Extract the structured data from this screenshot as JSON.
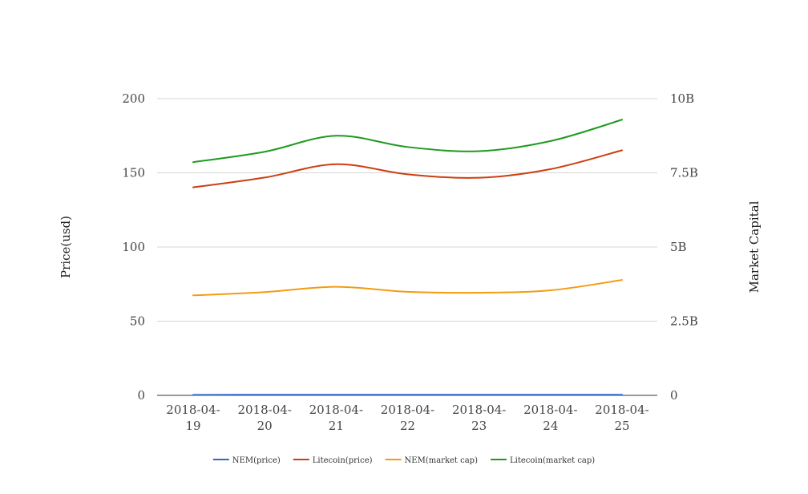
{
  "chart_data": {
    "type": "line",
    "title": "",
    "x": [
      "2018-04-19",
      "2018-04-20",
      "2018-04-21",
      "2018-04-22",
      "2018-04-23",
      "2018-04-24",
      "2018-04-25"
    ],
    "x_tick_labels": [
      [
        "2018-04-",
        "19"
      ],
      [
        "2018-04-",
        "20"
      ],
      [
        "2018-04-",
        "21"
      ],
      [
        "2018-04-",
        "22"
      ],
      [
        "2018-04-",
        "23"
      ],
      [
        "2018-04-",
        "24"
      ],
      [
        "2018-04-",
        "25"
      ]
    ],
    "y_left": {
      "label": "Price(usd)",
      "ylim": [
        0,
        200
      ],
      "ticks": [
        0,
        50,
        100,
        150,
        200
      ],
      "tick_labels": [
        "0",
        "50",
        "100",
        "150",
        "200"
      ]
    },
    "y_right": {
      "label": "Market Capital",
      "ylim": [
        0,
        10000000000
      ],
      "ticks": [
        0,
        2500000000,
        5000000000,
        7500000000,
        10000000000
      ],
      "tick_labels": [
        "0",
        "2.5B",
        "5B",
        "7.5B",
        "10B"
      ]
    },
    "grid": true,
    "legend_position": "bottom",
    "series": [
      {
        "name": "NEM(price)",
        "axis": "left",
        "color": "#3366cc",
        "values": [
          0.36,
          0.38,
          0.41,
          0.38,
          0.38,
          0.39,
          0.42
        ]
      },
      {
        "name": "Litecoin(price)",
        "axis": "left",
        "color": "#cc3e12",
        "values": [
          140.2,
          146.8,
          155.8,
          149.0,
          146.7,
          152.5,
          165.2
        ]
      },
      {
        "name": "NEM(market cap)",
        "axis": "right",
        "color": "#f39c12",
        "values": [
          3370000000,
          3480000000,
          3660000000,
          3490000000,
          3460000000,
          3540000000,
          3890000000
        ]
      },
      {
        "name": "Litecoin(market cap)",
        "axis": "right",
        "color": "#1e9a1e",
        "values": [
          7860000000,
          8210000000,
          8750000000,
          8370000000,
          8230000000,
          8570000000,
          9290000000
        ]
      }
    ]
  }
}
